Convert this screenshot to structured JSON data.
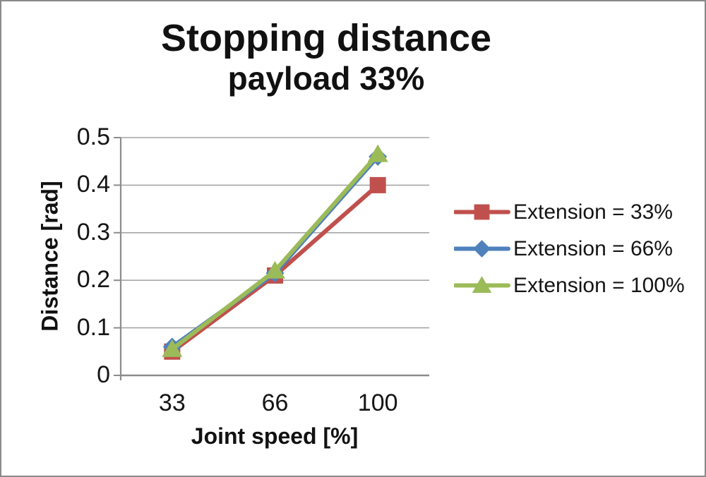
{
  "figure": {
    "background": "#ffffff",
    "border_color": "#8a8a8a"
  },
  "chart_data": {
    "type": "line",
    "title": "Stopping distance",
    "subtitle": "payload 33%",
    "xlabel": "Joint speed [%]",
    "ylabel": "Distance [rad]",
    "categories": [
      "33",
      "66",
      "100"
    ],
    "ylim": [
      0,
      0.5
    ],
    "yticks": [
      0,
      0.1,
      0.2,
      0.3,
      0.4,
      0.5
    ],
    "ytick_labels": [
      "0",
      "0.1",
      "0.2",
      "0.3",
      "0.4",
      "0.5"
    ],
    "grid": true,
    "legend_position": "right",
    "series": [
      {
        "name": "Extension = 33%",
        "marker": "square",
        "color": "#C0504D",
        "values": [
          0.05,
          0.21,
          0.4
        ]
      },
      {
        "name": "Extension = 66%",
        "marker": "diamond",
        "color": "#4F81BD",
        "values": [
          0.06,
          0.215,
          0.46
        ]
      },
      {
        "name": "Extension = 100%",
        "marker": "triangle",
        "color": "#9BBB59",
        "values": [
          0.055,
          0.22,
          0.465
        ]
      }
    ],
    "colors": {
      "gridline": "#A6A6A6",
      "axis": "#8C8C8C",
      "text": "#111111"
    }
  }
}
